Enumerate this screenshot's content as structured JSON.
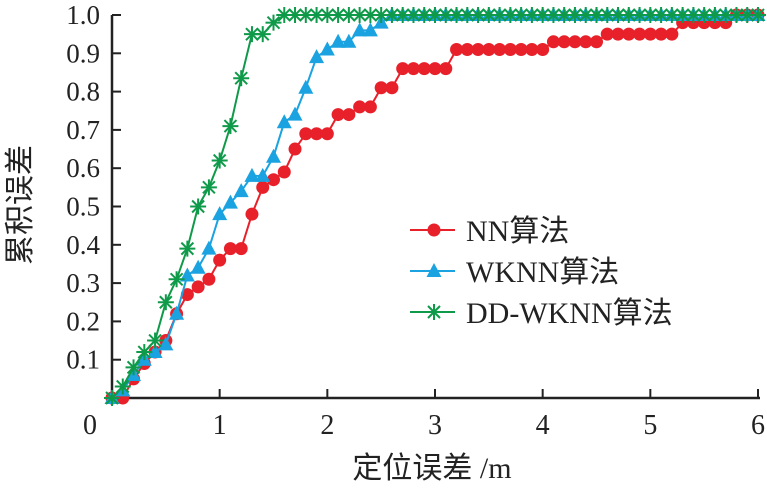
{
  "chart_data": {
    "type": "line",
    "title": "",
    "xlabel": "定位误差 /m",
    "ylabel": "累积误差",
    "xlim": [
      0,
      6
    ],
    "ylim": [
      0,
      1.0
    ],
    "xticks": [
      "0",
      "1",
      "2",
      "3",
      "4",
      "5",
      "6"
    ],
    "yticks": [
      "0.1",
      "0.2",
      "0.3",
      "0.4",
      "0.5",
      "0.6",
      "0.7",
      "0.8",
      "0.9",
      "1.0"
    ],
    "grid": false,
    "legend_position": "center-right",
    "x_step": 0.1,
    "series": [
      {
        "name": "NN算法",
        "color": "#e8202a",
        "marker": "circle",
        "values": [
          0,
          0,
          0.05,
          0.09,
          0.12,
          0.15,
          0.22,
          0.27,
          0.29,
          0.31,
          0.36,
          0.39,
          0.39,
          0.48,
          0.55,
          0.57,
          0.59,
          0.65,
          0.69,
          0.69,
          0.69,
          0.74,
          0.74,
          0.76,
          0.76,
          0.81,
          0.81,
          0.86,
          0.86,
          0.86,
          0.86,
          0.86,
          0.91,
          0.91,
          0.91,
          0.91,
          0.91,
          0.91,
          0.91,
          0.91,
          0.91,
          0.93,
          0.93,
          0.93,
          0.93,
          0.93,
          0.95,
          0.95,
          0.95,
          0.95,
          0.95,
          0.95,
          0.95,
          0.98,
          0.98,
          0.98,
          0.98,
          0.98,
          1.0,
          1.0,
          1.0
        ]
      },
      {
        "name": "WKNN算法",
        "color": "#1aa3e0",
        "marker": "triangle",
        "values": [
          0,
          0.02,
          0.06,
          0.1,
          0.12,
          0.14,
          0.22,
          0.32,
          0.34,
          0.39,
          0.48,
          0.51,
          0.54,
          0.58,
          0.58,
          0.63,
          0.72,
          0.74,
          0.81,
          0.89,
          0.91,
          0.93,
          0.93,
          0.96,
          0.96,
          0.98,
          1,
          1,
          1,
          1,
          1,
          1,
          1,
          1,
          1,
          1,
          1,
          1,
          1,
          1,
          1,
          1,
          1,
          1,
          1,
          1,
          1,
          1,
          1,
          1,
          1,
          1,
          1,
          1,
          1,
          1,
          1,
          1,
          1,
          1,
          1
        ]
      },
      {
        "name": "DD-WKNN算法",
        "color": "#0f9a4a",
        "marker": "asterisk",
        "values": [
          0,
          0.03,
          0.08,
          0.12,
          0.15,
          0.25,
          0.31,
          0.39,
          0.5,
          0.55,
          0.62,
          0.71,
          0.835,
          0.95,
          0.95,
          0.98,
          1,
          1,
          1,
          1,
          1,
          1,
          1,
          1,
          1,
          1,
          1,
          1,
          1,
          1,
          1,
          1,
          1,
          1,
          1,
          1,
          1,
          1,
          1,
          1,
          1,
          1,
          1,
          1,
          1,
          1,
          1,
          1,
          1,
          1,
          1,
          1,
          1,
          1,
          1,
          1,
          1,
          1,
          1,
          1,
          1
        ]
      }
    ]
  }
}
